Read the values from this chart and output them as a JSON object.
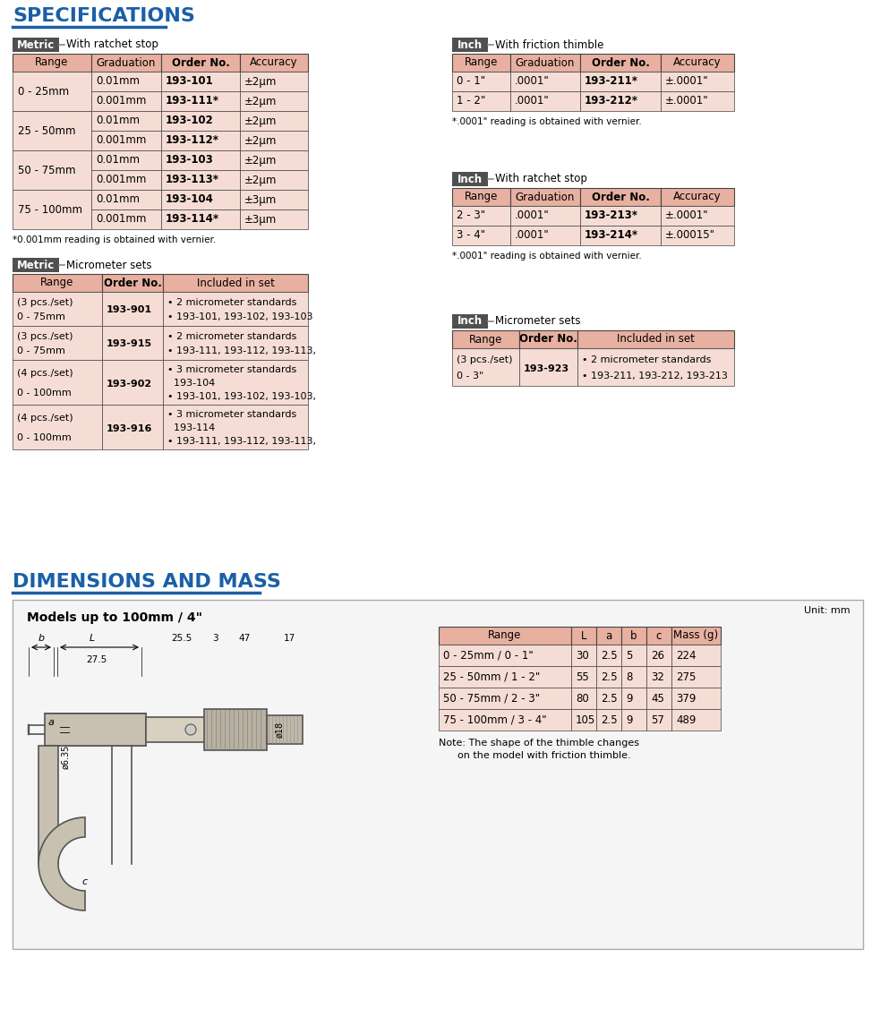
{
  "title_specs": "SPECIFICATIONS",
  "title_dims": "DIMENSIONS AND MASS",
  "title_color": "#1a5fa8",
  "bg_color": "#ffffff",
  "header_bg": "#e8b0a0",
  "row_bg_light": "#f5ddd5",
  "dark_header_bg": "#505050",
  "border_dark": "#444444",
  "metric_label": "Metric",
  "metric_subtitle1": "With ratchet stop",
  "metric_table_headers": [
    "Range",
    "Graduation",
    "Order No.",
    "Accuracy"
  ],
  "metric_rows": [
    [
      "0 - 25mm",
      "0.01mm",
      "193-101",
      "±2μm"
    ],
    [
      "0 - 25mm",
      "0.001mm",
      "193-111*",
      "±2μm"
    ],
    [
      "25 - 50mm",
      "0.01mm",
      "193-102",
      "±2μm"
    ],
    [
      "25 - 50mm",
      "0.001mm",
      "193-112*",
      "±2μm"
    ],
    [
      "50 - 75mm",
      "0.01mm",
      "193-103",
      "±2μm"
    ],
    [
      "50 - 75mm",
      "0.001mm",
      "193-113*",
      "±2μm"
    ],
    [
      "75 - 100mm",
      "0.01mm",
      "193-104",
      "±3μm"
    ],
    [
      "75 - 100mm",
      "0.001mm",
      "193-114*",
      "±3μm"
    ]
  ],
  "metric_footnote": "*0.001mm reading is obtained with vernier.",
  "inch1_label": "Inch",
  "inch1_subtitle": "With friction thimble",
  "inch1_headers": [
    "Range",
    "Graduation",
    "Order No.",
    "Accuracy"
  ],
  "inch1_rows": [
    [
      "0 - 1\"",
      ".0001\"",
      "193-211*",
      "±.0001\""
    ],
    [
      "1 - 2\"",
      ".0001\"",
      "193-212*",
      "±.0001\""
    ]
  ],
  "inch1_footnote": "*.0001\" reading is obtained with vernier.",
  "inch2_label": "Inch",
  "inch2_subtitle": "With ratchet stop",
  "inch2_headers": [
    "Range",
    "Graduation",
    "Order No.",
    "Accuracy"
  ],
  "inch2_rows": [
    [
      "2 - 3\"",
      ".0001\"",
      "193-213*",
      "±.0001\""
    ],
    [
      "3 - 4\"",
      ".0001\"",
      "193-214*",
      "±.00015\""
    ]
  ],
  "inch2_footnote": "*.0001\" reading is obtained with vernier.",
  "metric_sets_label": "Metric",
  "metric_sets_subtitle": "Micrometer sets",
  "metric_sets_headers": [
    "Range",
    "Order No.",
    "Included in set"
  ],
  "metric_sets_rows": [
    [
      "0 - 75mm\n(3 pcs./set)",
      "193-901",
      "• 193-101, 193-102, 193-103\n• 2 micrometer standards"
    ],
    [
      "0 - 75mm\n(3 pcs./set)",
      "193-915",
      "• 193-111, 193-112, 193-113,\n• 2 micrometer standards"
    ],
    [
      "0 - 100mm\n(4 pcs./set)",
      "193-902",
      "• 193-101, 193-102, 193-103,\n  193-104\n• 3 micrometer standards"
    ],
    [
      "0 - 100mm\n(4 pcs./set)",
      "193-916",
      "• 193-111, 193-112, 193-113,\n  193-114\n• 3 micrometer standards"
    ]
  ],
  "inch_sets_label": "Inch",
  "inch_sets_subtitle": "Micrometer sets",
  "inch_sets_headers": [
    "Range",
    "Order No.",
    "Included in set"
  ],
  "inch_sets_rows": [
    [
      "0 - 3\"\n(3 pcs./set)",
      "193-923",
      "• 193-211, 193-212, 193-213\n• 2 micrometer standards"
    ]
  ],
  "dims_subtitle": "Models up to 100mm / 4\"",
  "dims_unit": "Unit: mm",
  "dims_table_headers": [
    "Range",
    "L",
    "a",
    "b",
    "c",
    "Mass (g)"
  ],
  "dims_rows": [
    [
      "0 - 25mm / 0 - 1\"",
      "30",
      "2.5",
      "5",
      "26",
      "224"
    ],
    [
      "25 - 50mm / 1 - 2\"",
      "55",
      "2.5",
      "8",
      "32",
      "275"
    ],
    [
      "50 - 75mm / 2 - 3\"",
      "80",
      "2.5",
      "9",
      "45",
      "379"
    ],
    [
      "75 - 100mm / 3 - 4\"",
      "105",
      "2.5",
      "9",
      "57",
      "489"
    ]
  ],
  "dims_note": "Note: The shape of the thimble changes\n      on the model with friction thimble."
}
